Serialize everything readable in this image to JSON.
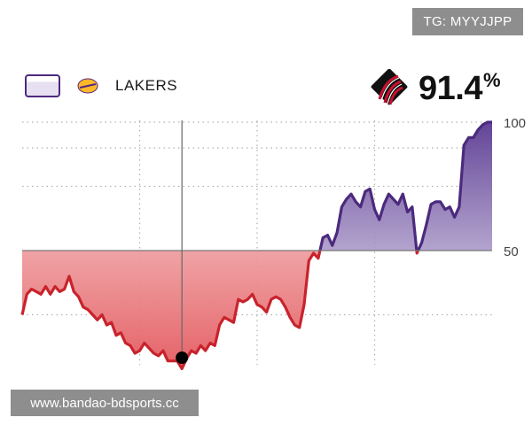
{
  "watermarks": {
    "top": "TG: MYYJJPP",
    "bottom": "www.bandao-bdsports.cc"
  },
  "legend": {
    "team_label": "LAKERS"
  },
  "probability": {
    "value": "91.4",
    "unit": "%"
  },
  "colors": {
    "lakers_line": "#c8232c",
    "lakers_fill": "#e35a5f",
    "blazers_line": "#4b2a7d",
    "blazers_fill": "#6c4f9e",
    "baseline": "#777777",
    "grid": "#b0b0b0",
    "blazers_logo": "#c8102e"
  },
  "chart_data": {
    "type": "area",
    "title": "",
    "xlabel": "",
    "ylabel": "",
    "ylim": [
      0,
      100
    ],
    "yticks": [
      50,
      100
    ],
    "baseline": 50,
    "grid": true,
    "marker_x": 0.34,
    "series": [
      {
        "x": [
          0.0,
          0.01,
          0.02,
          0.03,
          0.04,
          0.05,
          0.06,
          0.07,
          0.08,
          0.09,
          0.1,
          0.11,
          0.12,
          0.13,
          0.14,
          0.15,
          0.16,
          0.17,
          0.18,
          0.19,
          0.2,
          0.21,
          0.22,
          0.23,
          0.24,
          0.25,
          0.26,
          0.27,
          0.28,
          0.29,
          0.3,
          0.31,
          0.32,
          0.33,
          0.34,
          0.35,
          0.36,
          0.37,
          0.38,
          0.39,
          0.4,
          0.41,
          0.42,
          0.43,
          0.44,
          0.45,
          0.46,
          0.47,
          0.48,
          0.49,
          0.5,
          0.51,
          0.52,
          0.53,
          0.54,
          0.55,
          0.56,
          0.57,
          0.58,
          0.59,
          0.6,
          0.61,
          0.62,
          0.63,
          0.64,
          0.65,
          0.66,
          0.67,
          0.68,
          0.69,
          0.7,
          0.71,
          0.72,
          0.73,
          0.74,
          0.75,
          0.76,
          0.77,
          0.78,
          0.79,
          0.8,
          0.81,
          0.82,
          0.83,
          0.84,
          0.85,
          0.86,
          0.87,
          0.88,
          0.89,
          0.9,
          0.91,
          0.92,
          0.93,
          0.94,
          0.95,
          0.96,
          0.97,
          0.98,
          0.99,
          1.0
        ],
        "y": [
          25,
          33,
          35,
          34,
          33,
          36,
          33,
          36,
          34,
          35,
          40,
          34,
          32,
          28,
          27,
          25,
          23,
          25,
          21,
          22,
          17,
          18,
          14,
          13,
          10,
          11,
          14,
          12,
          10,
          9,
          11,
          7,
          7,
          7,
          4,
          8,
          11,
          10,
          13,
          11,
          14,
          13,
          21,
          24,
          23,
          22,
          31,
          30,
          31,
          33,
          29,
          28,
          26,
          31,
          32,
          31,
          28,
          24,
          21,
          20,
          29,
          46,
          49,
          47,
          55,
          56,
          52,
          57,
          67,
          70,
          72,
          69,
          67,
          73,
          74,
          66,
          62,
          68,
          72,
          70,
          68,
          72,
          65,
          67,
          49,
          53,
          60,
          68,
          69,
          69,
          66,
          67,
          63,
          67,
          91,
          94,
          94,
          97,
          99,
          100,
          100
        ]
      }
    ]
  }
}
